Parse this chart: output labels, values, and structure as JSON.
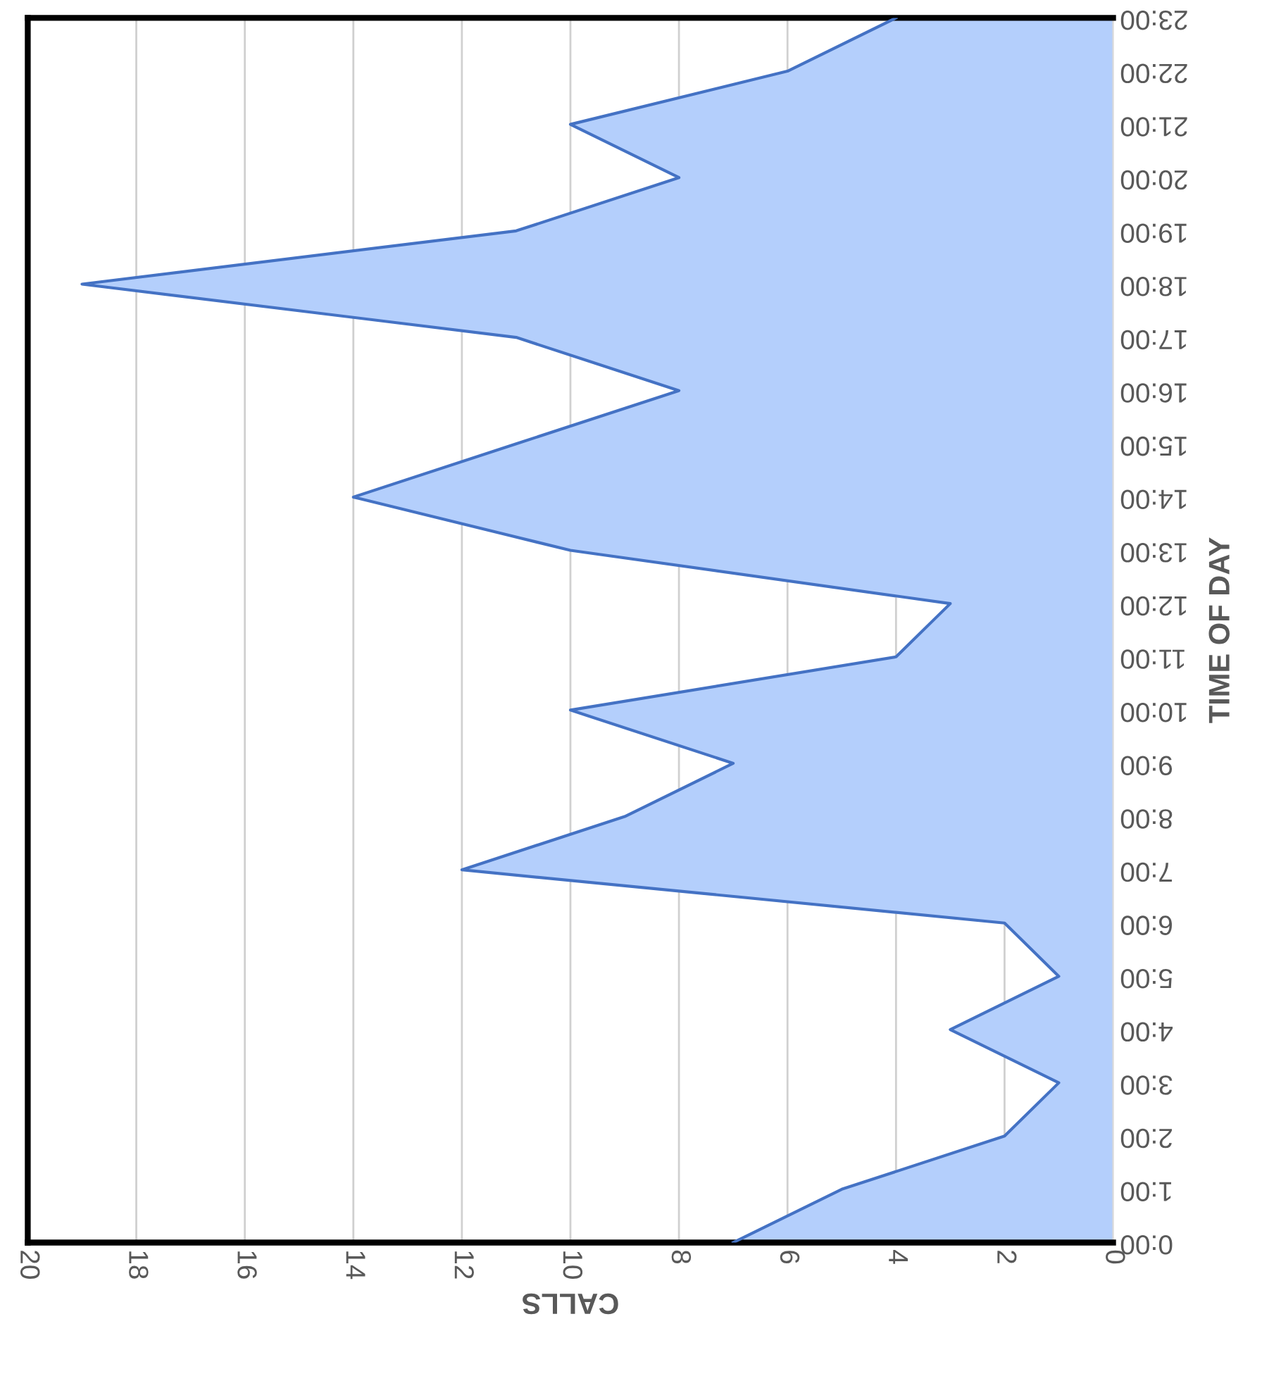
{
  "chart_data": {
    "type": "area",
    "orientation": "horizontal",
    "xlabel": "CALLS",
    "ylabel": "TIME OF DAY",
    "categories": [
      "23:00",
      "22:00",
      "21:00",
      "20:00",
      "19:00",
      "18:00",
      "17:00",
      "16:00",
      "15:00",
      "14:00",
      "13:00",
      "12:00",
      "11:00",
      "10:00",
      "9:00",
      "8:00",
      "7:00",
      "6:00",
      "5:00",
      "4:00",
      "3:00",
      "2:00",
      "1:00",
      "0:00"
    ],
    "series": [
      {
        "color": "#b4cffc",
        "values": [
          4,
          6,
          10,
          8,
          11,
          19,
          11,
          8,
          11,
          14,
          10,
          3,
          4,
          10,
          7,
          9,
          12,
          2,
          1,
          3,
          1,
          2,
          5,
          7
        ]
      }
    ],
    "xlim": [
      20,
      0
    ],
    "xticks": [
      0,
      2,
      4,
      6,
      8,
      10,
      12,
      14,
      16,
      18,
      20
    ],
    "grid": "x",
    "legend": false
  }
}
